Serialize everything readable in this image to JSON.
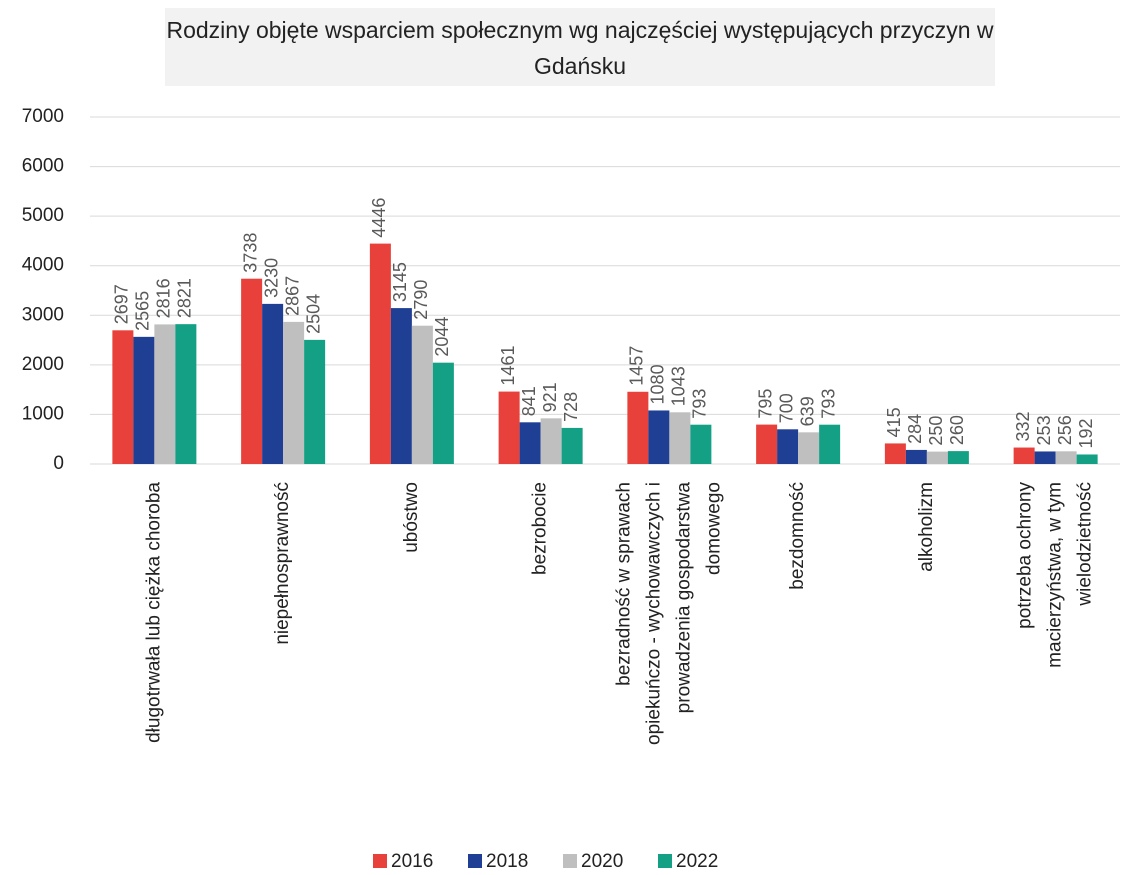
{
  "chart_data": {
    "type": "bar",
    "title": "Rodziny objęte wsparciem społecznym wg najczęściej występujących przyczyn w Gdańsku",
    "categories": [
      "długotrwała lub ciężka choroba",
      "niepełnosprawność",
      "ubóstwo",
      "bezrobocie",
      "bezradność w sprawach opiekuńczo - wychowawczych i prowadzenia gospodarstwa domowego",
      "bezdomność",
      "alkoholizm",
      "potrzeba ochrony macierzyństwa, w tym wielodzietność"
    ],
    "series": [
      {
        "name": "2016",
        "color": "#e8403a",
        "values": [
          2697,
          3738,
          4446,
          1461,
          1457,
          795,
          415,
          332
        ]
      },
      {
        "name": "2018",
        "color": "#1f3f94",
        "values": [
          2565,
          3230,
          3145,
          841,
          1080,
          700,
          284,
          253
        ]
      },
      {
        "name": "2020",
        "color": "#bfbfbf",
        "values": [
          2816,
          2867,
          2790,
          921,
          1043,
          639,
          250,
          256
        ]
      },
      {
        "name": "2022",
        "color": "#13a085",
        "values": [
          2821,
          2504,
          2044,
          728,
          793,
          793,
          260,
          192
        ]
      }
    ],
    "ylim": [
      0,
      7000
    ],
    "yticks": [
      0,
      1000,
      2000,
      3000,
      4000,
      5000,
      6000,
      7000
    ],
    "grid": true,
    "legend": "bottom"
  }
}
